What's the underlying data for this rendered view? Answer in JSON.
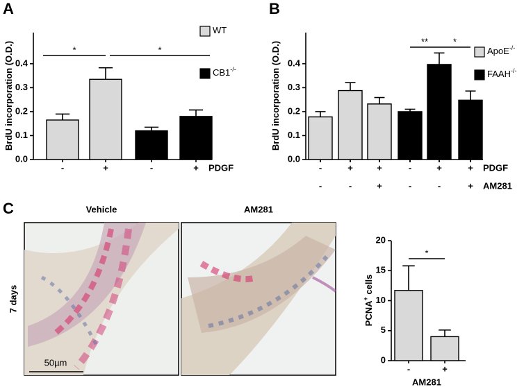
{
  "panels": [
    "A",
    "B",
    "C"
  ],
  "images": {
    "labels": [
      "Vehicle",
      "AM281"
    ],
    "row_label": "7 days",
    "scale_bar": "50µm"
  },
  "chart_data": [
    {
      "type": "bar",
      "ylabel": "BrdU incorporation (O.D.)",
      "ylim": [
        0,
        0.53
      ],
      "yticks": [
        {
          "value": 0,
          "label": "0.0"
        },
        0.1,
        0.2,
        0.3,
        0.4
      ],
      "values": [
        0.165,
        0.335,
        0.12,
        0.18
      ],
      "errors": [
        0.025,
        0.048,
        0.015,
        0.027
      ],
      "colors": [
        "#d9d9d9",
        "#d9d9d9",
        "#000000",
        "#000000"
      ],
      "xrows": [
        {
          "label": "PDGF",
          "values": [
            "-",
            "+",
            "-",
            "+"
          ]
        }
      ],
      "legend": [
        {
          "name": "WT",
          "sup": "",
          "color": "#d9d9d9"
        },
        {
          "name": "CB1",
          "sup": "-/-",
          "color": "#000000"
        }
      ],
      "annotations": [
        "*",
        "*"
      ]
    },
    {
      "type": "bar",
      "ylabel": "BrdU incorporation (O.D.)",
      "ylim": [
        0,
        0.53
      ],
      "yticks": [
        {
          "value": 0,
          "label": "0.0"
        },
        0.1,
        0.2,
        0.3,
        0.4
      ],
      "values": [
        0.178,
        0.288,
        0.232,
        0.2,
        0.397,
        0.248
      ],
      "errors": [
        0.022,
        0.033,
        0.027,
        0.01,
        0.048,
        0.038
      ],
      "colors": [
        "#d9d9d9",
        "#d9d9d9",
        "#d9d9d9",
        "#000000",
        "#000000",
        "#000000"
      ],
      "xrows": [
        {
          "label": "PDGF",
          "values": [
            "-",
            "+",
            "+",
            "-",
            "+",
            "+"
          ]
        },
        {
          "label": "AM281",
          "values": [
            "-",
            "-",
            "+",
            "-",
            "-",
            "+"
          ]
        }
      ],
      "legend": [
        {
          "name": "ApoE",
          "sup": "-/-",
          "color": "#d9d9d9"
        },
        {
          "name": "FAAH",
          "sup": "-/-",
          "color": "#000000"
        }
      ],
      "annotations": [
        "**",
        "*"
      ]
    },
    {
      "type": "bar",
      "ylabel": "PCNA",
      "ylabel_sup": "+",
      "ylabel_rest": " cells",
      "ylim": [
        0,
        20
      ],
      "yticks": [
        0,
        5,
        10,
        15,
        20
      ],
      "values": [
        11.7,
        4.0
      ],
      "errors": [
        4.1,
        1.1
      ],
      "colors": [
        "#d9d9d9",
        "#d9d9d9"
      ],
      "xrows": [
        {
          "label": "AM281",
          "values": [
            "-",
            "+"
          ]
        }
      ],
      "legend": [],
      "annotations": [
        "*"
      ]
    }
  ]
}
